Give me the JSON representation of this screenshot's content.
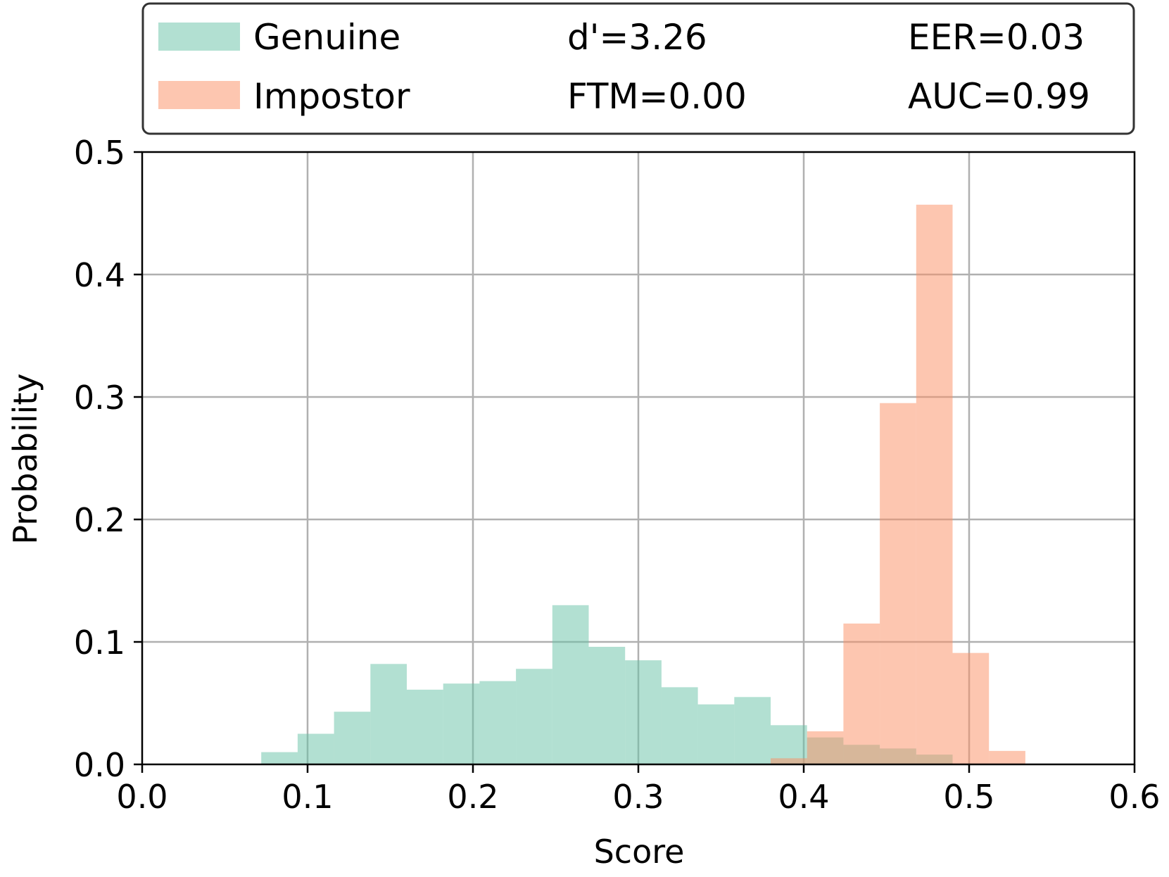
{
  "chart_data": {
    "type": "bar",
    "xlabel": "Score",
    "ylabel": "Probability",
    "xlim": [
      0.0,
      0.6
    ],
    "ylim": [
      0.0,
      0.5
    ],
    "xticks": [
      "0.0",
      "0.1",
      "0.2",
      "0.3",
      "0.4",
      "0.5",
      "0.6"
    ],
    "yticks": [
      "0.0",
      "0.1",
      "0.2",
      "0.3",
      "0.4",
      "0.5"
    ],
    "grid": true,
    "legend_position": "top",
    "series": [
      {
        "name": "Genuine",
        "color": "#66c2a5",
        "bins": [
          {
            "x0": 0.072,
            "x1": 0.094,
            "y": 0.01
          },
          {
            "x0": 0.094,
            "x1": 0.116,
            "y": 0.025
          },
          {
            "x0": 0.116,
            "x1": 0.138,
            "y": 0.043
          },
          {
            "x0": 0.138,
            "x1": 0.16,
            "y": 0.082
          },
          {
            "x0": 0.16,
            "x1": 0.182,
            "y": 0.061
          },
          {
            "x0": 0.182,
            "x1": 0.204,
            "y": 0.066
          },
          {
            "x0": 0.204,
            "x1": 0.226,
            "y": 0.068
          },
          {
            "x0": 0.226,
            "x1": 0.248,
            "y": 0.078
          },
          {
            "x0": 0.248,
            "x1": 0.27,
            "y": 0.13
          },
          {
            "x0": 0.27,
            "x1": 0.292,
            "y": 0.096
          },
          {
            "x0": 0.292,
            "x1": 0.314,
            "y": 0.085
          },
          {
            "x0": 0.314,
            "x1": 0.336,
            "y": 0.063
          },
          {
            "x0": 0.336,
            "x1": 0.358,
            "y": 0.049
          },
          {
            "x0": 0.358,
            "x1": 0.38,
            "y": 0.055
          },
          {
            "x0": 0.38,
            "x1": 0.402,
            "y": 0.032
          },
          {
            "x0": 0.402,
            "x1": 0.424,
            "y": 0.022
          },
          {
            "x0": 0.424,
            "x1": 0.446,
            "y": 0.016
          },
          {
            "x0": 0.446,
            "x1": 0.468,
            "y": 0.013
          },
          {
            "x0": 0.468,
            "x1": 0.49,
            "y": 0.008
          }
        ]
      },
      {
        "name": "Impostor",
        "color": "#fc8d62",
        "bins": [
          {
            "x0": 0.38,
            "x1": 0.402,
            "y": 0.005
          },
          {
            "x0": 0.402,
            "x1": 0.424,
            "y": 0.027
          },
          {
            "x0": 0.424,
            "x1": 0.446,
            "y": 0.115
          },
          {
            "x0": 0.446,
            "x1": 0.468,
            "y": 0.295
          },
          {
            "x0": 0.468,
            "x1": 0.49,
            "y": 0.457
          },
          {
            "x0": 0.49,
            "x1": 0.512,
            "y": 0.091
          },
          {
            "x0": 0.512,
            "x1": 0.534,
            "y": 0.011
          }
        ]
      }
    ],
    "stats": {
      "d_prime": "d'=3.26",
      "ftm": "FTM=0.00",
      "eer": "EER=0.03",
      "auc": "AUC=0.99"
    }
  }
}
